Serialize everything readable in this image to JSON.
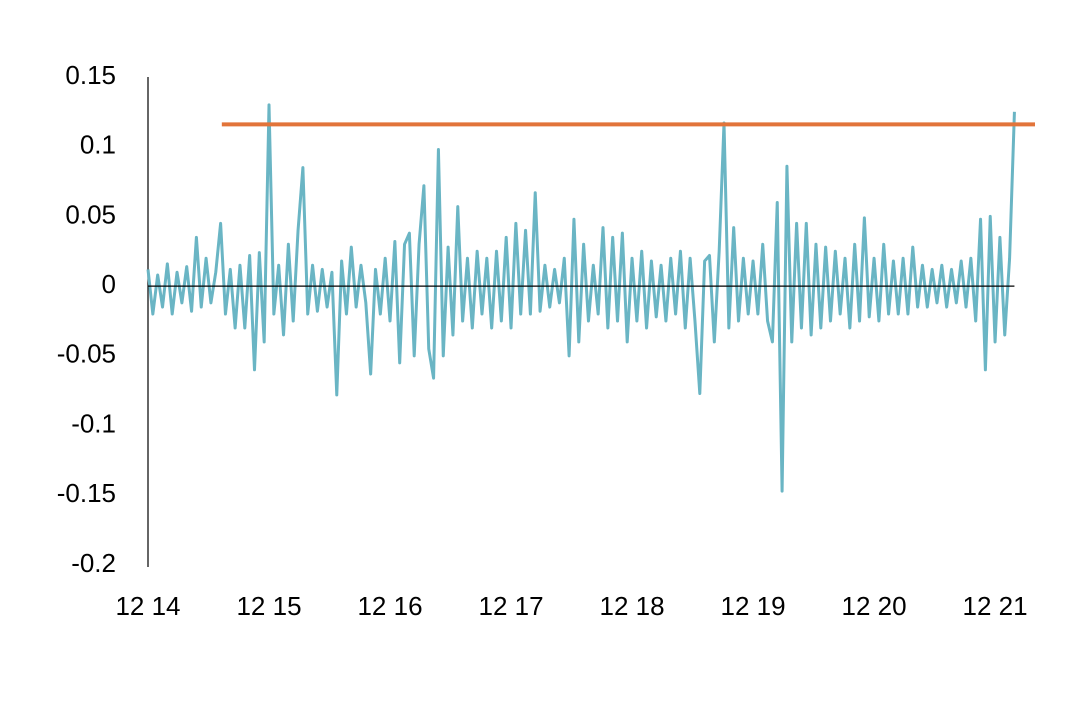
{
  "chart_data": {
    "type": "line",
    "xlim": [
      2014,
      2021.33
    ],
    "ylim": [
      -0.2,
      0.15
    ],
    "xticks": [
      {
        "value": 2014,
        "label": "12 14"
      },
      {
        "value": 2015,
        "label": "12 15"
      },
      {
        "value": 2016,
        "label": "12 16"
      },
      {
        "value": 2017,
        "label": "12 17"
      },
      {
        "value": 2018,
        "label": "12 18"
      },
      {
        "value": 2019,
        "label": "12 19"
      },
      {
        "value": 2020,
        "label": "12 20"
      },
      {
        "value": 2021,
        "label": "12 21"
      }
    ],
    "yticks": [
      0.15,
      0.1,
      0.05,
      0,
      -0.05,
      -0.1,
      -0.15,
      -0.2
    ],
    "grid": false,
    "series": [
      {
        "color": "#6ab5c4",
        "x": [
          2014,
          2014.04,
          2014.08,
          2014.12,
          2014.16,
          2014.2,
          2014.24,
          2014.28,
          2014.32,
          2014.36,
          2014.4,
          2014.44,
          2014.48,
          2014.52,
          2014.56,
          2014.6,
          2014.64,
          2014.68,
          2014.72,
          2014.76,
          2014.8,
          2014.84,
          2014.88,
          2014.92,
          2014.96,
          2015,
          2015.04,
          2015.08,
          2015.12,
          2015.16,
          2015.2,
          2015.24,
          2015.28,
          2015.32,
          2015.36,
          2015.4,
          2015.44,
          2015.48,
          2015.52,
          2015.56,
          2015.6,
          2015.64,
          2015.68,
          2015.72,
          2015.76,
          2015.8,
          2015.84,
          2015.88,
          2015.92,
          2015.96,
          2016,
          2016.04,
          2016.08,
          2016.12,
          2016.16,
          2016.2,
          2016.24,
          2016.28,
          2016.32,
          2016.36,
          2016.4,
          2016.44,
          2016.48,
          2016.52,
          2016.56,
          2016.6,
          2016.64,
          2016.68,
          2016.72,
          2016.76,
          2016.8,
          2016.84,
          2016.88,
          2016.92,
          2016.96,
          2017,
          2017.04,
          2017.08,
          2017.12,
          2017.16,
          2017.2,
          2017.24,
          2017.28,
          2017.32,
          2017.36,
          2017.4,
          2017.44,
          2017.48,
          2017.52,
          2017.56,
          2017.6,
          2017.64,
          2017.68,
          2017.72,
          2017.76,
          2017.8,
          2017.84,
          2017.88,
          2017.92,
          2017.96,
          2018,
          2018.04,
          2018.08,
          2018.12,
          2018.16,
          2018.2,
          2018.24,
          2018.28,
          2018.32,
          2018.36,
          2018.4,
          2018.44,
          2018.48,
          2018.52,
          2018.56,
          2018.6,
          2018.64,
          2018.68,
          2018.72,
          2018.76,
          2018.8,
          2018.84,
          2018.88,
          2018.92,
          2018.96,
          2019,
          2019.04,
          2019.08,
          2019.12,
          2019.16,
          2019.2,
          2019.24,
          2019.28,
          2019.32,
          2019.36,
          2019.4,
          2019.44,
          2019.48,
          2019.52,
          2019.56,
          2019.6,
          2019.64,
          2019.68,
          2019.72,
          2019.76,
          2019.8,
          2019.84,
          2019.88,
          2019.92,
          2019.96,
          2020,
          2020.04,
          2020.08,
          2020.12,
          2020.16,
          2020.2,
          2020.24,
          2020.28,
          2020.32,
          2020.36,
          2020.4,
          2020.44,
          2020.48,
          2020.52,
          2020.56,
          2020.6,
          2020.64,
          2020.68,
          2020.72,
          2020.76,
          2020.8,
          2020.84,
          2020.88,
          2020.92,
          2020.96,
          2021,
          2021.04,
          2021.08,
          2021.12,
          2021.16
        ],
        "values": [
          0.012,
          -0.02,
          0.008,
          -0.015,
          0.016,
          -0.02,
          0.01,
          -0.012,
          0.014,
          -0.018,
          0.035,
          -0.015,
          0.02,
          -0.012,
          0.01,
          0.045,
          -0.02,
          0.012,
          -0.03,
          0.015,
          -0.03,
          0.022,
          -0.06,
          0.024,
          -0.04,
          0.13,
          -0.02,
          0.015,
          -0.035,
          0.03,
          -0.025,
          0.04,
          0.085,
          -0.02,
          0.015,
          -0.018,
          0.012,
          -0.015,
          0.01,
          -0.078,
          0.018,
          -0.02,
          0.028,
          -0.015,
          0.015,
          -0.012,
          -0.063,
          0.012,
          -0.02,
          0.02,
          -0.025,
          0.032,
          -0.055,
          0.03,
          0.038,
          -0.05,
          0.03,
          0.072,
          -0.045,
          -0.066,
          0.098,
          -0.05,
          0.028,
          -0.035,
          0.057,
          -0.025,
          0.02,
          -0.03,
          0.025,
          -0.02,
          0.02,
          -0.03,
          0.025,
          -0.025,
          0.035,
          -0.03,
          0.045,
          -0.02,
          0.04,
          -0.02,
          0.067,
          -0.018,
          0.015,
          -0.015,
          0.012,
          -0.012,
          0.02,
          -0.05,
          0.048,
          -0.04,
          0.03,
          -0.025,
          0.015,
          -0.02,
          0.042,
          -0.03,
          0.035,
          -0.025,
          0.038,
          -0.04,
          0.02,
          -0.025,
          0.025,
          -0.03,
          0.018,
          -0.022,
          0.015,
          -0.025,
          0.02,
          -0.02,
          0.025,
          -0.03,
          0.02,
          -0.025,
          -0.077,
          0.018,
          0.022,
          -0.04,
          0.025,
          0.117,
          -0.03,
          0.042,
          -0.025,
          0.02,
          -0.02,
          0.018,
          -0.02,
          0.03,
          -0.025,
          -0.04,
          0.06,
          -0.147,
          0.086,
          -0.04,
          0.045,
          -0.03,
          0.045,
          -0.035,
          0.03,
          -0.03,
          0.028,
          -0.025,
          0.025,
          -0.02,
          0.02,
          -0.03,
          0.03,
          -0.025,
          0.049,
          -0.022,
          0.02,
          -0.025,
          0.03,
          -0.02,
          0.018,
          -0.02,
          0.02,
          -0.02,
          0.028,
          -0.015,
          0.015,
          -0.015,
          0.012,
          -0.012,
          0.015,
          -0.015,
          0.012,
          -0.012,
          0.018,
          -0.015,
          0.02,
          -0.025,
          0.048,
          -0.06,
          0.05,
          -0.04,
          0.035,
          -0.035,
          0.02,
          0.125
        ]
      },
      {
        "color": "#e2743a",
        "x": [
          2014.61,
          2021.33
        ],
        "values": [
          0.116,
          0.116
        ]
      }
    ]
  }
}
